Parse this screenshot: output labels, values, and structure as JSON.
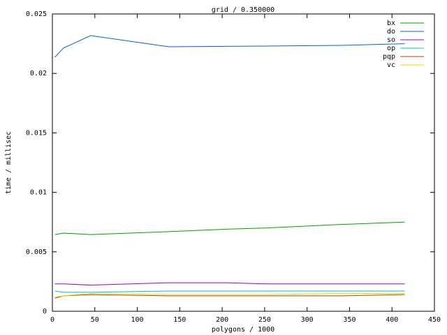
{
  "chart_data": {
    "type": "line",
    "title": "grid / 0.350000",
    "x_label": "polygons / 1000",
    "y_label": "time / millisec",
    "x": [
      3,
      13,
      45,
      137,
      205,
      250,
      340,
      415
    ],
    "series": [
      {
        "name": "bx",
        "color": "#00a000",
        "values": [
          0.00645,
          0.00657,
          0.00645,
          0.0067,
          0.0069,
          0.007,
          0.0073,
          0.0075
        ]
      },
      {
        "name": "do",
        "color": "#0060e0",
        "values": [
          0.02136,
          0.02213,
          0.02318,
          0.02224,
          0.02228,
          0.0223,
          0.02236,
          0.0225
        ]
      },
      {
        "name": "so",
        "color": "#a000c0",
        "values": [
          0.0023,
          0.0023,
          0.0022,
          0.0024,
          0.0024,
          0.0023,
          0.0023,
          0.0023
        ]
      },
      {
        "name": "op",
        "color": "#00c0c0",
        "values": [
          0.0017,
          0.0016,
          0.0016,
          0.0017,
          0.0017,
          0.0017,
          0.0017,
          0.0017
        ]
      },
      {
        "name": "pqp",
        "color": "#c04000",
        "values": [
          0.0011,
          0.0013,
          0.0014,
          0.0013,
          0.0013,
          0.0013,
          0.0013,
          0.0014
        ]
      },
      {
        "name": "vc",
        "color": "#e0e000",
        "values": [
          0.0012,
          0.0013,
          0.0015,
          0.0014,
          0.0014,
          0.0014,
          0.0015,
          0.0015
        ]
      }
    ],
    "xlim": [
      0,
      450
    ],
    "xticks": [
      0,
      50,
      100,
      150,
      200,
      250,
      300,
      350,
      400,
      450
    ],
    "ylim": [
      0,
      0.025
    ],
    "yticks": [
      0,
      0.005,
      0.01,
      0.015,
      0.02,
      0.025
    ],
    "legend": "top-right"
  }
}
